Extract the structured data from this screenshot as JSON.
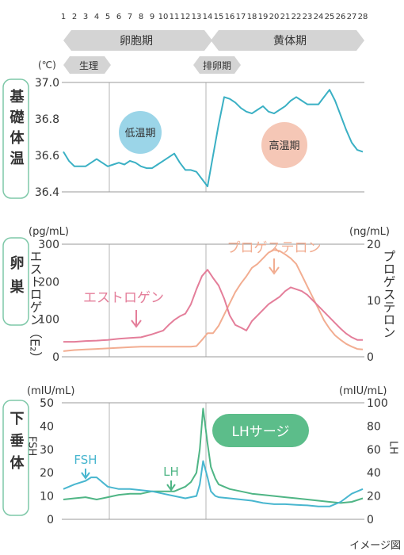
{
  "days": [
    "1",
    "2",
    "3",
    "4",
    "5",
    "6",
    "7",
    "8",
    "9",
    "10",
    "11",
    "12",
    "13",
    "14",
    "15",
    "16",
    "17",
    "18",
    "19",
    "20",
    "21",
    "22",
    "23",
    "24",
    "25",
    "26",
    "27",
    "28"
  ],
  "phases": {
    "follicular": "卵胞期",
    "luteal": "黄体期",
    "menstruation": "生理",
    "ovulation": "排卵期"
  },
  "side_labels": {
    "temp": "基礎体温",
    "ovary": "卵巣",
    "pituitary": "下垂体"
  },
  "caption": "イメージ図",
  "colors": {
    "temp_line": "#3ab0c4",
    "low_bubble": "#9bd5e8",
    "high_bubble": "#f5c7b6",
    "estrogen": "#e47e9a",
    "progesterone": "#f2ad91",
    "fsh": "#48b6cf",
    "lh": "#4fb585",
    "surge": "#5cbd8a",
    "phase_arrow": "#d4d4d4",
    "side_border": "#7ec8a8"
  },
  "chart_data": [
    {
      "type": "line",
      "name_key": "temperature",
      "unit": "(℃)",
      "x": [
        1,
        1.5,
        2,
        2.5,
        3,
        3.5,
        4,
        4.5,
        5,
        5.5,
        6,
        6.5,
        7,
        7.5,
        8,
        8.5,
        9,
        9.5,
        10,
        10.5,
        11,
        11.5,
        12,
        12.5,
        13,
        13.5,
        14,
        14.5,
        15,
        15.5,
        16,
        16.5,
        17,
        17.5,
        18,
        18.5,
        19,
        19.5,
        20,
        20.5,
        21,
        21.5,
        22,
        22.5,
        23,
        23.5,
        24,
        24.5,
        25,
        25.5,
        26,
        26.5,
        27,
        27.5,
        28
      ],
      "y": [
        36.62,
        36.57,
        36.54,
        36.54,
        36.54,
        36.56,
        36.58,
        36.56,
        36.54,
        36.55,
        36.56,
        36.55,
        36.57,
        36.56,
        36.54,
        36.53,
        36.53,
        36.55,
        36.57,
        36.59,
        36.61,
        36.56,
        36.52,
        36.52,
        36.51,
        36.47,
        36.43,
        36.6,
        36.77,
        36.92,
        36.91,
        36.89,
        36.86,
        36.84,
        36.83,
        36.85,
        36.87,
        36.84,
        36.83,
        36.85,
        36.87,
        36.9,
        36.92,
        36.9,
        36.88,
        36.88,
        36.88,
        36.92,
        36.96,
        36.9,
        36.82,
        36.74,
        36.67,
        36.63,
        36.62
      ],
      "ylim": [
        36.4,
        37.0
      ],
      "yticks": [
        "36.4",
        "36.6",
        "36.8",
        "37.0"
      ],
      "annotations": [
        "低温期",
        "高温期"
      ]
    },
    {
      "type": "line",
      "name_key": "ovary",
      "y_left_unit": "(pg/mL)",
      "y_right_unit": "(ng/mL)",
      "ylim_left": [
        0,
        300
      ],
      "ylim_right": [
        0,
        20
      ],
      "yticks_left": [
        "0",
        "100",
        "200",
        "300"
      ],
      "yticks_right": [
        "0",
        "10",
        "20"
      ],
      "series": [
        {
          "name": "エストロゲン",
          "axis_label": "エストロゲン（E₂）",
          "axis": "left",
          "x": [
            1,
            2,
            3,
            4,
            5,
            6,
            7,
            8,
            9,
            10,
            10.5,
            11,
            11.5,
            12,
            12.5,
            13,
            13.5,
            14,
            14.5,
            15,
            15.5,
            16,
            16.5,
            17,
            17.5,
            18,
            18.5,
            19,
            19.5,
            20,
            20.5,
            21,
            21.5,
            22,
            22.5,
            23,
            23.5,
            24,
            24.5,
            25,
            25.5,
            26,
            26.5,
            27,
            27.5,
            28
          ],
          "y": [
            40,
            40,
            42,
            43,
            45,
            48,
            50,
            52,
            60,
            70,
            85,
            98,
            108,
            115,
            140,
            180,
            215,
            232,
            210,
            190,
            155,
            110,
            85,
            78,
            70,
            95,
            110,
            125,
            140,
            150,
            160,
            175,
            185,
            180,
            175,
            165,
            150,
            135,
            120,
            105,
            90,
            75,
            62,
            52,
            45,
            45
          ]
        },
        {
          "name": "プロゲステロン",
          "axis_label": "プロゲステロン",
          "axis": "right",
          "x": [
            1,
            2,
            3,
            4,
            5,
            6,
            7,
            8,
            9,
            10,
            11,
            12,
            12.5,
            13,
            13.5,
            14,
            14.5,
            15,
            15.5,
            16,
            16.5,
            17,
            17.5,
            18,
            18.5,
            19,
            19.5,
            20,
            20.5,
            21,
            21.5,
            22,
            22.5,
            23,
            23.5,
            24,
            24.5,
            25,
            25.5,
            26,
            26.5,
            27,
            27.5,
            28
          ],
          "y": [
            1,
            1.2,
            1.3,
            1.4,
            1.5,
            1.6,
            1.7,
            1.8,
            1.8,
            1.8,
            1.8,
            1.8,
            1.8,
            1.9,
            3.0,
            4.2,
            4.2,
            5.5,
            7.5,
            9.5,
            11.5,
            13,
            14.3,
            15.8,
            16.5,
            17.5,
            18.5,
            19.0,
            18.8,
            18.2,
            17.5,
            16.5,
            14.5,
            12.5,
            10.5,
            8.5,
            6.5,
            5.0,
            3.8,
            3.0,
            2.3,
            1.8,
            1.4,
            1.3
          ]
        }
      ]
    },
    {
      "type": "line",
      "name_key": "pituitary",
      "y_left_unit": "(mIU/mL)",
      "y_right_unit": "(mIU/mL)",
      "ylim_left": [
        0,
        50
      ],
      "ylim_right": [
        0,
        100
      ],
      "yticks_left": [
        "0",
        "10",
        "20",
        "30",
        "40",
        "50"
      ],
      "yticks_right": [
        "0",
        "20",
        "40",
        "60",
        "80",
        "100"
      ],
      "annotations": [
        "LHサージ"
      ],
      "series": [
        {
          "name": "FSH",
          "axis_label": "FSH",
          "axis": "left",
          "x": [
            1,
            2,
            3,
            3.5,
            4,
            5,
            6,
            7,
            8,
            9,
            10,
            11,
            12,
            13,
            13.3,
            13.6,
            14,
            14.3,
            14.7,
            15,
            16,
            17,
            18,
            19,
            20,
            21,
            22,
            23,
            24,
            25,
            26,
            27,
            28
          ],
          "y": [
            13,
            15,
            16.5,
            18,
            18,
            14,
            13,
            13,
            12.5,
            12,
            11,
            10,
            9,
            10,
            15,
            25,
            18,
            12,
            10,
            9.5,
            9,
            8.5,
            8,
            7,
            6.5,
            6.5,
            6.2,
            6,
            5.5,
            5.5,
            7.5,
            11,
            13
          ]
        },
        {
          "name": "LH",
          "axis_label": "LH",
          "axis": "right",
          "x": [
            1,
            2,
            3,
            4,
            5,
            6,
            7,
            8,
            9,
            10,
            11,
            12,
            12.5,
            13,
            13.3,
            13.6,
            14,
            14.3,
            14.7,
            15,
            16,
            17,
            18,
            19,
            20,
            21,
            22,
            23,
            24,
            25,
            26,
            27,
            28
          ],
          "y": [
            17,
            18,
            19,
            17,
            19,
            21,
            22,
            22,
            24,
            24,
            24,
            28,
            32,
            40,
            60,
            95,
            65,
            45,
            35,
            30,
            26,
            24,
            22,
            21,
            20,
            19,
            18,
            17,
            16,
            15,
            14,
            15,
            18
          ]
        }
      ]
    }
  ]
}
